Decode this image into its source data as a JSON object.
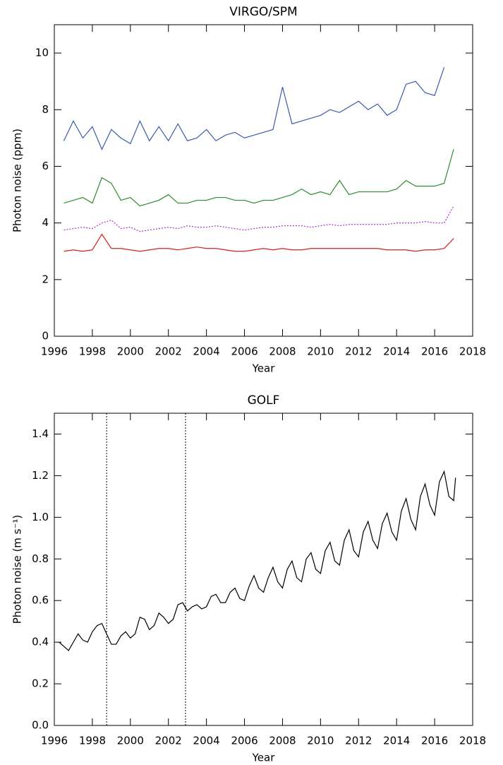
{
  "chart_data": [
    {
      "type": "line",
      "title": "VIRGO/SPM",
      "xlabel": "Year",
      "ylabel": "Photon noise (ppm)",
      "xlim": [
        1996,
        2018
      ],
      "xticks": [
        1996,
        1998,
        2000,
        2002,
        2004,
        2006,
        2008,
        2010,
        2012,
        2014,
        2016,
        2018
      ],
      "ylim": [
        0,
        11
      ],
      "yticks": [
        0,
        2,
        4,
        6,
        8,
        10
      ],
      "x": [
        1996.5,
        1997,
        1997.5,
        1998,
        1998.5,
        1999,
        1999.5,
        2000,
        2000.5,
        2001,
        2001.5,
        2002,
        2002.5,
        2003,
        2003.5,
        2004,
        2004.5,
        2005,
        2005.5,
        2006,
        2006.5,
        2007,
        2007.5,
        2008,
        2008.5,
        2009,
        2009.5,
        2010,
        2010.5,
        2011,
        2011.5,
        2012,
        2012.5,
        2013,
        2013.5,
        2014,
        2014.5,
        2015,
        2015.5,
        2016,
        2016.5,
        2017
      ],
      "series": [
        {
          "color": "#3a5bb0",
          "linestyle": "solid",
          "values": [
            6.9,
            7.6,
            7.0,
            7.4,
            6.6,
            7.3,
            7.0,
            6.8,
            7.6,
            6.9,
            7.4,
            6.9,
            7.5,
            6.9,
            7.0,
            7.3,
            6.9,
            7.1,
            7.2,
            7.0,
            7.1,
            7.2,
            7.3,
            8.8,
            7.5,
            7.6,
            7.7,
            7.8,
            8.0,
            7.9,
            8.1,
            8.3,
            8.0,
            8.2,
            7.8,
            8.0,
            8.9,
            9.0,
            8.6,
            8.5,
            9.5,
            null
          ]
        },
        {
          "color": "#2e8b2e",
          "linestyle": "solid",
          "values": [
            4.7,
            4.8,
            4.9,
            4.7,
            5.6,
            5.4,
            4.8,
            4.9,
            4.6,
            4.7,
            4.8,
            5.0,
            4.7,
            4.7,
            4.8,
            4.8,
            4.9,
            4.9,
            4.8,
            4.8,
            4.7,
            4.8,
            4.8,
            4.9,
            5.0,
            5.2,
            5.0,
            5.1,
            5.0,
            5.5,
            5.0,
            5.1,
            5.1,
            5.1,
            5.1,
            5.2,
            5.5,
            5.3,
            5.3,
            5.3,
            5.4,
            6.6
          ]
        },
        {
          "color": "#b030d0",
          "linestyle": "dotted",
          "values": [
            3.75,
            3.8,
            3.85,
            3.8,
            4.0,
            4.1,
            3.8,
            3.85,
            3.7,
            3.75,
            3.8,
            3.85,
            3.8,
            3.9,
            3.85,
            3.85,
            3.9,
            3.85,
            3.8,
            3.75,
            3.8,
            3.85,
            3.85,
            3.9,
            3.9,
            3.9,
            3.85,
            3.9,
            3.95,
            3.9,
            3.95,
            3.95,
            3.95,
            3.95,
            3.95,
            4.0,
            4.0,
            4.0,
            4.05,
            4.0,
            4.0,
            4.6
          ]
        },
        {
          "color": "#d02020",
          "linestyle": "solid",
          "values": [
            3.0,
            3.05,
            3.0,
            3.05,
            3.6,
            3.1,
            3.1,
            3.05,
            3.0,
            3.05,
            3.1,
            3.1,
            3.05,
            3.1,
            3.15,
            3.1,
            3.1,
            3.05,
            3.0,
            3.0,
            3.05,
            3.1,
            3.05,
            3.1,
            3.05,
            3.05,
            3.1,
            3.1,
            3.1,
            3.1,
            3.1,
            3.1,
            3.1,
            3.1,
            3.05,
            3.05,
            3.05,
            3.0,
            3.05,
            3.05,
            3.1,
            3.45
          ]
        }
      ]
    },
    {
      "type": "line",
      "title": "GOLF",
      "xlabel": "Year",
      "ylabel": "Photon noise (m s⁻¹)",
      "xlim": [
        1996,
        2018
      ],
      "xticks": [
        1996,
        1998,
        2000,
        2002,
        2004,
        2006,
        2008,
        2010,
        2012,
        2014,
        2016,
        2018
      ],
      "ylim": [
        0,
        1.5
      ],
      "yticks": [
        {
          "value": 0,
          "label": "0.0"
        },
        {
          "value": 0.2,
          "label": "0.2"
        },
        {
          "value": 0.4,
          "label": "0.4"
        },
        {
          "value": 0.6,
          "label": "0.6"
        },
        {
          "value": 0.8,
          "label": "0.8"
        },
        {
          "value": 1,
          "label": "1.0"
        },
        {
          "value": 1.2,
          "label": "1.2"
        },
        {
          "value": 1.4,
          "label": "1.4"
        }
      ],
      "vlines": [
        1998.75,
        2002.9
      ],
      "x": [
        1996.25,
        1996.5,
        1996.75,
        1997,
        1997.25,
        1997.5,
        1997.75,
        1998,
        1998.25,
        1998.5,
        1998.75,
        1999,
        1999.25,
        1999.5,
        1999.75,
        2000,
        2000.25,
        2000.5,
        2000.75,
        2001,
        2001.25,
        2001.5,
        2001.75,
        2002,
        2002.25,
        2002.5,
        2002.75,
        2003,
        2003.25,
        2003.5,
        2003.75,
        2004,
        2004.25,
        2004.5,
        2004.75,
        2005,
        2005.25,
        2005.5,
        2005.75,
        2006,
        2006.25,
        2006.5,
        2006.75,
        2007,
        2007.25,
        2007.5,
        2007.75,
        2008,
        2008.25,
        2008.5,
        2008.75,
        2009,
        2009.25,
        2009.5,
        2009.75,
        2010,
        2010.25,
        2010.5,
        2010.75,
        2011,
        2011.25,
        2011.5,
        2011.75,
        2012,
        2012.25,
        2012.5,
        2012.75,
        2013,
        2013.25,
        2013.5,
        2013.75,
        2014,
        2014.25,
        2014.5,
        2014.75,
        2015,
        2015.25,
        2015.5,
        2015.75,
        2016,
        2016.25,
        2016.5,
        2016.75,
        2017,
        2017.1
      ],
      "series": [
        {
          "color": "#000000",
          "linestyle": "solid",
          "values": [
            0.4,
            0.38,
            0.36,
            0.4,
            0.44,
            0.41,
            0.4,
            0.45,
            0.48,
            0.49,
            0.44,
            0.39,
            0.39,
            0.43,
            0.45,
            0.42,
            0.44,
            0.52,
            0.51,
            0.46,
            0.48,
            0.54,
            0.52,
            0.49,
            0.51,
            0.58,
            0.59,
            0.55,
            0.57,
            0.58,
            0.56,
            0.57,
            0.62,
            0.63,
            0.59,
            0.59,
            0.64,
            0.66,
            0.61,
            0.6,
            0.67,
            0.72,
            0.66,
            0.64,
            0.71,
            0.76,
            0.69,
            0.66,
            0.75,
            0.79,
            0.71,
            0.69,
            0.8,
            0.83,
            0.75,
            0.73,
            0.84,
            0.88,
            0.79,
            0.77,
            0.89,
            0.94,
            0.84,
            0.81,
            0.93,
            0.98,
            0.89,
            0.85,
            0.97,
            1.02,
            0.93,
            0.89,
            1.03,
            1.09,
            0.99,
            0.94,
            1.1,
            1.16,
            1.06,
            1.01,
            1.17,
            1.22,
            1.1,
            1.08,
            1.19
          ]
        }
      ]
    }
  ]
}
